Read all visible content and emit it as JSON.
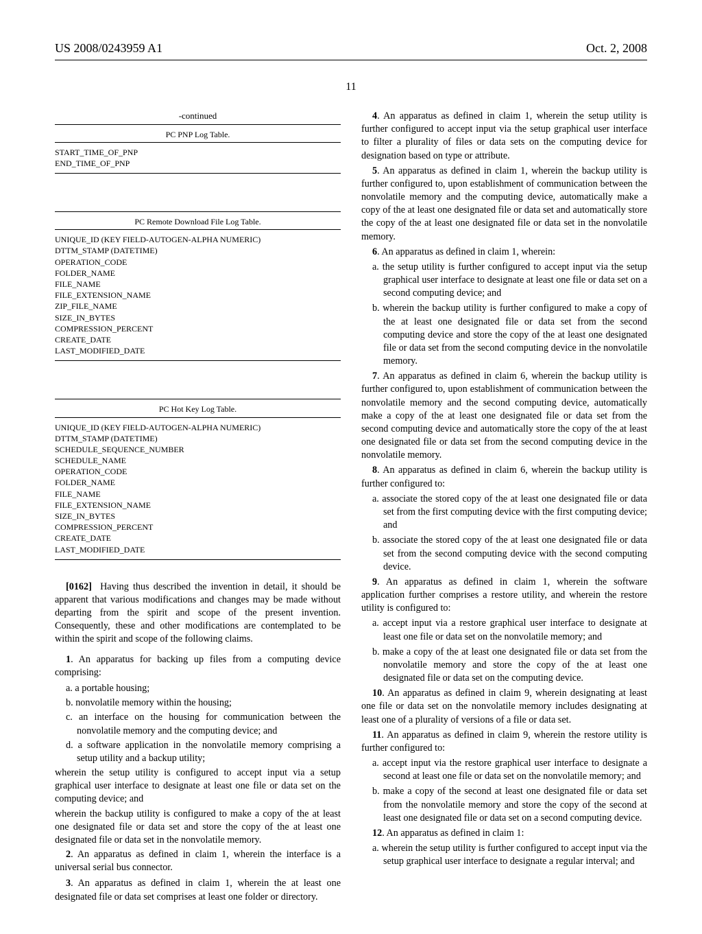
{
  "header": {
    "pub_number": "US 2008/0243959 A1",
    "date": "Oct. 2, 2008"
  },
  "page_number": "11",
  "left": {
    "continued": "-continued",
    "table1_title": "PC PNP Log Table.",
    "table1_rows": "START_TIME_OF_PNP\nEND_TIME_OF_PNP",
    "table2_title": "PC Remote Download File Log Table.",
    "table2_rows": "UNIQUE_ID (KEY FIELD-AUTOGEN-ALPHA NUMERIC)\nDTTM_STAMP (DATETIME)\nOPERATION_CODE\nFOLDER_NAME\nFILE_NAME\nFILE_EXTENSION_NAME\nZIP_FILE_NAME\nSIZE_IN_BYTES\nCOMPRESSION_PERCENT\nCREATE_DATE\nLAST_MODIFIED_DATE",
    "table3_title": "PC Hot Key Log Table.",
    "table3_rows": "UNIQUE_ID (KEY FIELD-AUTOGEN-ALPHA NUMERIC)\nDTTM_STAMP (DATETIME)\nSCHEDULE_SEQUENCE_NUMBER\nSCHEDULE_NAME\nOPERATION_CODE\nFOLDER_NAME\nFILE_NAME\nFILE_EXTENSION_NAME\nSIZE_IN_BYTES\nCOMPRESSION_PERCENT\nCREATE_DATE\nLAST_MODIFIED_DATE",
    "para162_label": "[0162]",
    "para162": "Having thus described the invention in detail, it should be apparent that various modifications and changes may be made without departing from the spirit and scope of the present invention. Consequently, these and other modifications are contemplated to be within the spirit and scope of the following claims.",
    "claim1_lead": "1",
    "claim1_text": ". An apparatus for backing up files from a computing device comprising:",
    "claim1_a": "a. a portable housing;",
    "claim1_b": "b. nonvolatile memory within the housing;",
    "claim1_c": "c. an interface on the housing for communication between the nonvolatile memory and the computing device; and",
    "claim1_d": "d. a software application in the nonvolatile memory comprising a setup utility and a backup utility;",
    "claim1_w1": "wherein the setup utility is configured to accept input via a setup graphical user interface to designate at least one file or data set on the computing device; and",
    "claim1_w2": "wherein the backup utility is configured to make a copy of the at least one designated file or data set and store the copy of the at least one designated file or data set in the nonvolatile memory.",
    "claim2_lead": "2",
    "claim2_text": ". An apparatus as defined in claim 1, wherein the interface is a universal serial bus connector.",
    "claim3_lead": "3",
    "claim3_text": ". An apparatus as defined in claim 1, wherein the at least one designated file or data set comprises at least one folder or directory."
  },
  "right": {
    "claim4_lead": "4",
    "claim4_text": ". An apparatus as defined in claim 1, wherein the setup utility is further configured to accept input via the setup graphical user interface to filter a plurality of files or data sets on the computing device for designation based on type or attribute.",
    "claim5_lead": "5",
    "claim5_text": ". An apparatus as defined in claim 1, wherein the backup utility is further configured to, upon establishment of communication between the nonvolatile memory and the computing device, automatically make a copy of the at least one designated file or data set and automatically store the copy of the at least one designated file or data set in the nonvolatile memory.",
    "claim6_lead": "6",
    "claim6_text": ". An apparatus as defined in claim 1, wherein:",
    "claim6_a": "a. the setup utility is further configured to accept input via the setup graphical user interface to designate at least one file or data set on a second computing device; and",
    "claim6_b": "b. wherein the backup utility is further configured to make a copy of the at least one designated file or data set from the second computing device and store the copy of the at least one designated file or data set from the second computing device in the nonvolatile memory.",
    "claim7_lead": "7",
    "claim7_text": ". An apparatus as defined in claim 6, wherein the backup utility is further configured to, upon establishment of communication between the nonvolatile memory and the second computing device, automatically make a copy of the at least one designated file or data set from the second computing device and automatically store the copy of the at least one designated file or data set from the second computing device in the nonvolatile memory.",
    "claim8_lead": "8",
    "claim8_text": ". An apparatus as defined in claim 6, wherein the backup utility is further configured to:",
    "claim8_a": "a. associate the stored copy of the at least one designated file or data set from the first computing device with the first computing device; and",
    "claim8_b": "b. associate the stored copy of the at least one designated file or data set from the second computing device with the second computing device.",
    "claim9_lead": "9",
    "claim9_text": ". An apparatus as defined in claim 1, wherein the software application further comprises a restore utility, and wherein the restore utility is configured to:",
    "claim9_a": "a. accept input via a restore graphical user interface to designate at least one file or data set on the nonvolatile memory; and",
    "claim9_b": "b. make a copy of the at least one designated file or data set from the nonvolatile memory and store the copy of the at least one designated file or data set on the computing device.",
    "claim10_lead": "10",
    "claim10_text": ". An apparatus as defined in claim 9, wherein designating at least one file or data set on the nonvolatile memory includes designating at least one of a plurality of versions of a file or data set.",
    "claim11_lead": "11",
    "claim11_text": ". An apparatus as defined in claim 9, wherein the restore utility is further configured to:",
    "claim11_a": "a. accept input via the restore graphical user interface to designate a second at least one file or data set on the nonvolatile memory; and",
    "claim11_b": "b. make a copy of the second at least one designated file or data set from the nonvolatile memory and store the copy of the second at least one designated file or data set on a second computing device.",
    "claim12_lead": "12",
    "claim12_text": ". An apparatus as defined in claim 1:",
    "claim12_a": "a. wherein the setup utility is further configured to accept input via the setup graphical user interface to designate a regular interval; and"
  }
}
